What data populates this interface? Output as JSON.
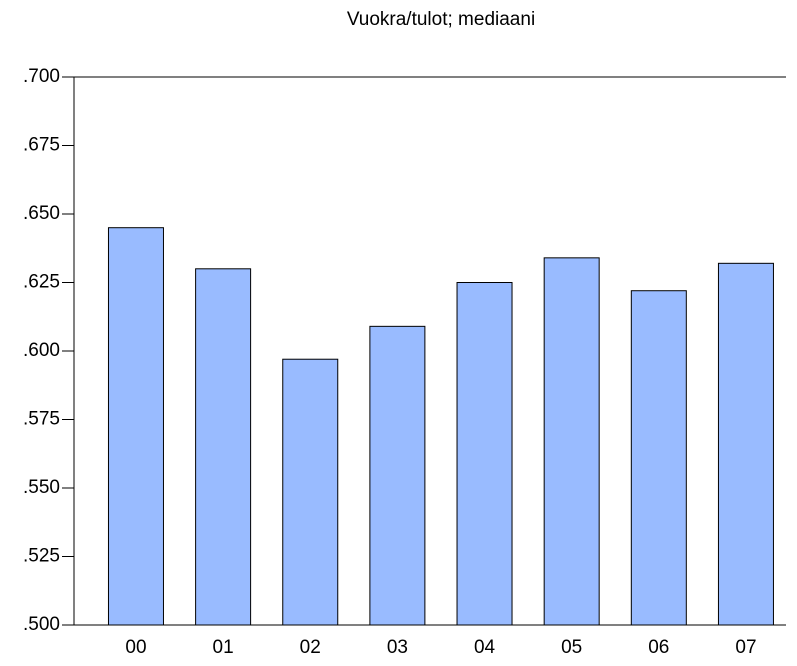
{
  "chart_data": {
    "type": "bar",
    "title": "Vuokra/tulot; mediaani",
    "categories": [
      "00",
      "01",
      "02",
      "03",
      "04",
      "05",
      "06",
      "07"
    ],
    "values": [
      0.645,
      0.63,
      0.597,
      0.609,
      0.625,
      0.634,
      0.622,
      0.632
    ],
    "color": "#99bbff",
    "ylim": [
      0.5,
      0.7
    ],
    "yticks": [
      {
        "value": 0.5,
        "label": ".500"
      },
      {
        "value": 0.525,
        "label": ".525"
      },
      {
        "value": 0.55,
        "label": ".550"
      },
      {
        "value": 0.575,
        "label": ".575"
      },
      {
        "value": 0.6,
        "label": ".600"
      },
      {
        "value": 0.625,
        "label": ".625"
      },
      {
        "value": 0.65,
        "label": ".650"
      },
      {
        "value": 0.675,
        "label": ".675"
      },
      {
        "value": 0.7,
        "label": ".700"
      }
    ]
  }
}
